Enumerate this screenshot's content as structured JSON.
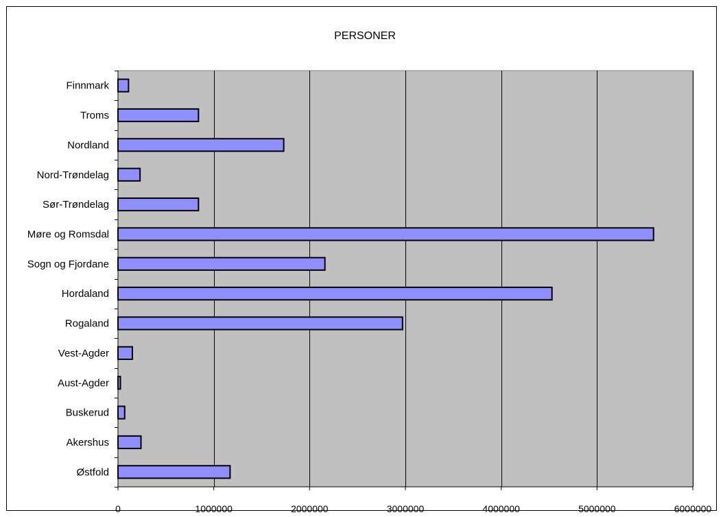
{
  "chart_data": {
    "type": "bar",
    "orientation": "horizontal",
    "title": "PERSONER",
    "xlabel": "",
    "ylabel": "",
    "categories": [
      "Finnmark",
      "Troms",
      "Nordland",
      "Nord-Trøndelag",
      "Sør-Trøndelag",
      "Møre og Romsdal",
      "Sogn og Fjordane",
      "Hordaland",
      "Rogaland",
      "Vest-Agder",
      "Aust-Agder",
      "Buskerud",
      "Akershus",
      "Østfold"
    ],
    "values": [
      110000,
      840000,
      1730000,
      230000,
      840000,
      5590000,
      2160000,
      4530000,
      2970000,
      150000,
      25000,
      70000,
      240000,
      1170000
    ],
    "xlim": [
      0,
      6000000
    ],
    "xticks": [
      0,
      1000000,
      2000000,
      3000000,
      4000000,
      5000000,
      6000000
    ],
    "xtick_labels": [
      "0",
      "1000000",
      "2000000",
      "3000000",
      "4000000",
      "5000000",
      "6000000"
    ],
    "grid": "vertical",
    "legend": "none",
    "colors": {
      "bar_fill": "#8f8fff",
      "bar_stroke": "#000000",
      "plot_background": "#c0c0c0",
      "gridline": "#000000"
    }
  }
}
